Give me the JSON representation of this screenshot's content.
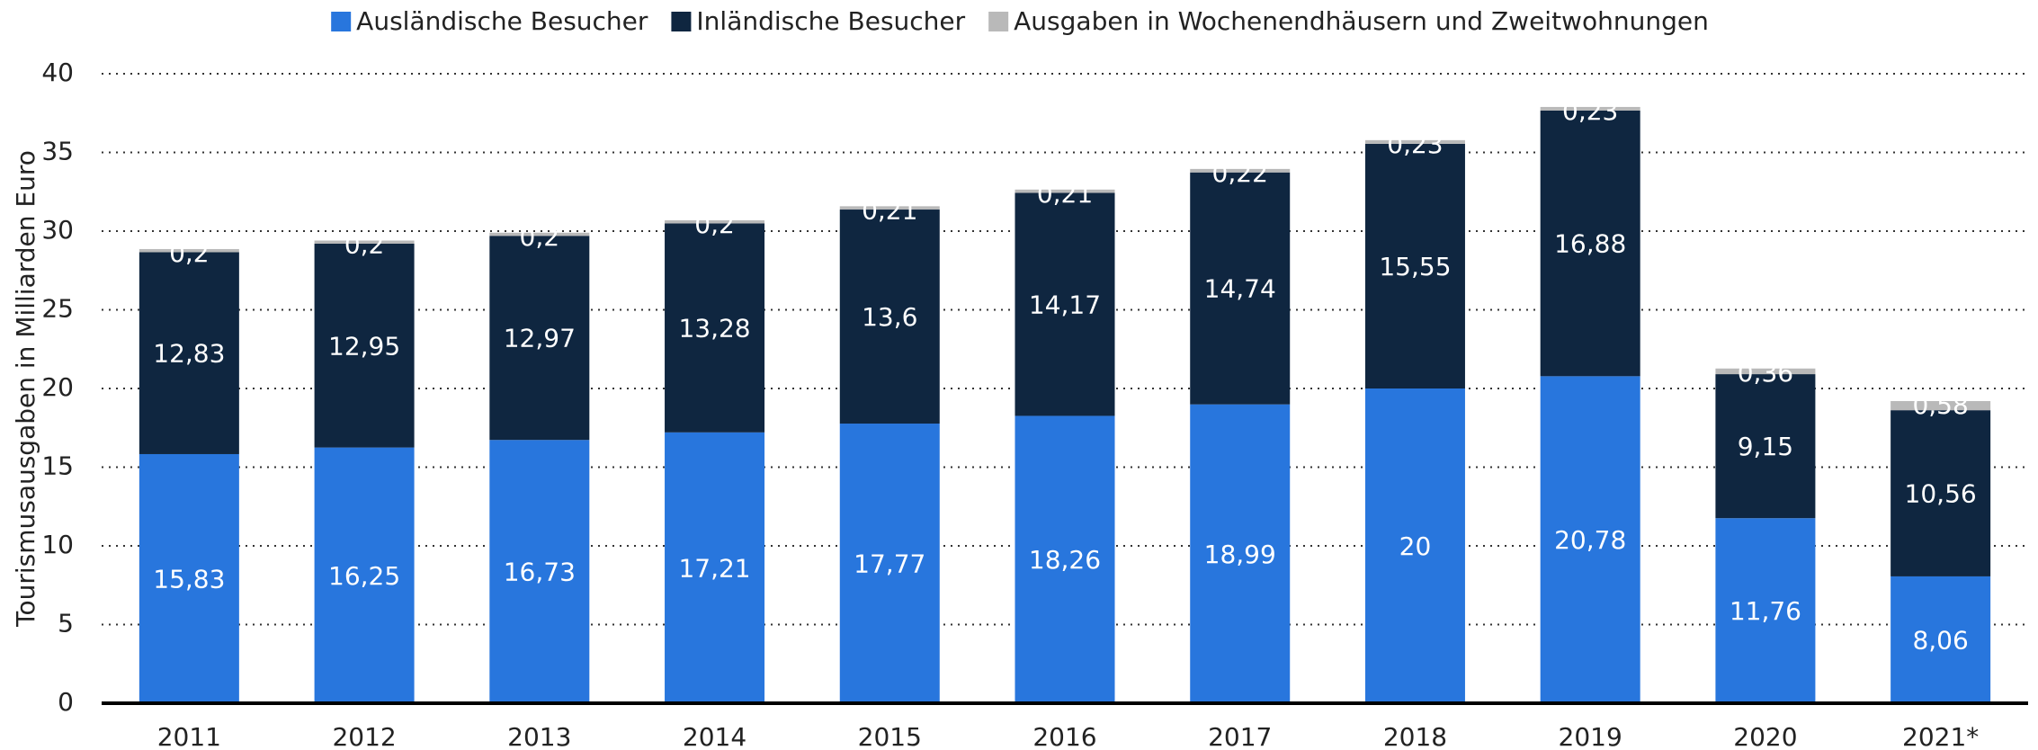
{
  "chart_data": {
    "type": "stacked_bar",
    "y_label": "Tourismusausgaben in Milliarden Euro",
    "categories": [
      "2011",
      "2012",
      "2013",
      "2014",
      "2015",
      "2016",
      "2017",
      "2018",
      "2019",
      "2020",
      "2021*"
    ],
    "series": [
      {
        "name": "Ausländische Besucher",
        "color": "#2876dd",
        "values": [
          15.83,
          16.25,
          16.73,
          17.21,
          17.77,
          18.26,
          18.99,
          20,
          20.78,
          11.76,
          8.06
        ],
        "value_labels": [
          "15,83",
          "16,25",
          "16,73",
          "17,21",
          "17,77",
          "18,26",
          "18,99",
          "20",
          "20,78",
          "11,76",
          "8,06"
        ]
      },
      {
        "name": "Inländische Besucher",
        "color": "#0f2640",
        "values": [
          12.83,
          12.95,
          12.97,
          13.28,
          13.6,
          14.17,
          14.74,
          15.55,
          16.88,
          9.15,
          10.56
        ],
        "value_labels": [
          "12,83",
          "12,95",
          "12,97",
          "13,28",
          "13,6",
          "14,17",
          "14,74",
          "15,55",
          "16,88",
          "9,15",
          "10,56"
        ]
      },
      {
        "name": "Ausgaben in Wochenendhäusern und Zweitwohnungen",
        "color": "#b9b9b9",
        "values": [
          0.2,
          0.2,
          0.2,
          0.2,
          0.21,
          0.21,
          0.22,
          0.23,
          0.23,
          0.36,
          0.58
        ],
        "value_labels": [
          "0,2",
          "0,2",
          "0,2",
          "0,2",
          "0,21",
          "0,21",
          "0,22",
          "0,23",
          "0,23",
          "0,36",
          "0,58"
        ]
      }
    ],
    "ylim": [
      0,
      40
    ],
    "yticks": [
      0,
      5,
      10,
      15,
      20,
      25,
      30,
      35,
      40
    ],
    "grid": true,
    "legend": "top"
  }
}
